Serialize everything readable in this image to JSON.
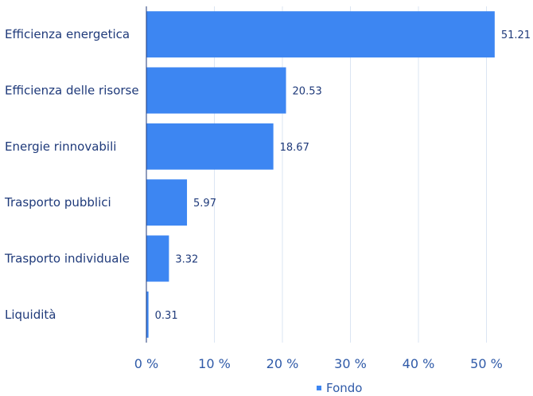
{
  "chart_data": {
    "type": "bar",
    "orientation": "horizontal",
    "categories": [
      "Efficienza energetica",
      "Efficienza delle risorse",
      "Energie rinnovabili",
      "Trasporto pubblici",
      "Trasporto individuale",
      "Liquidità"
    ],
    "series": [
      {
        "name": "Fondo",
        "values": [
          51.21,
          20.53,
          18.67,
          5.97,
          3.32,
          0.31
        ],
        "color": "#3d86f2"
      }
    ],
    "value_labels": [
      "51.21",
      "20.53",
      "18.67",
      "5.97",
      "3.32",
      "0.31"
    ],
    "xlim": [
      0,
      55
    ],
    "x_ticks": [
      0,
      10,
      20,
      30,
      40,
      50
    ],
    "x_tick_labels": [
      "0 %",
      "10 %",
      "20 %",
      "30 %",
      "40 %",
      "50 %"
    ],
    "grid": true,
    "legend_position": "bottom"
  },
  "colors": {
    "bar": "#3d86f2",
    "text": "#1f3a7a",
    "tick_text": "#2f5aa8",
    "grid": "#dbe5f3"
  }
}
